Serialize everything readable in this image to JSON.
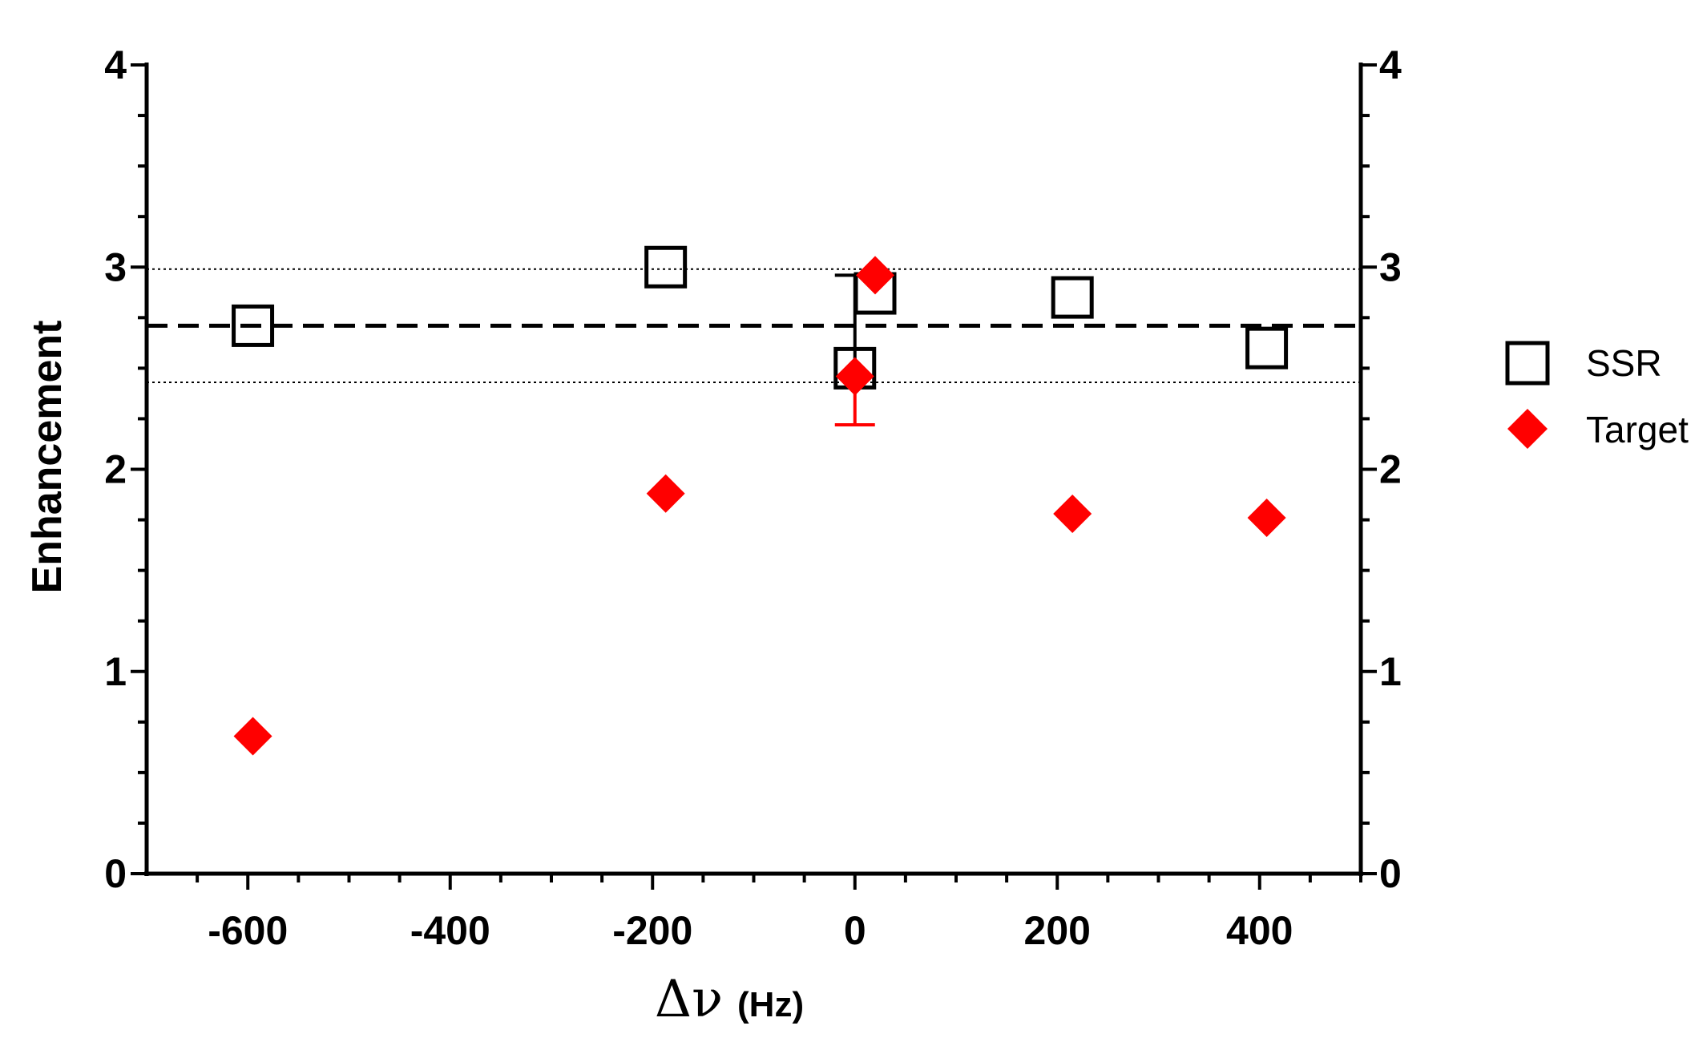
{
  "chart_data": {
    "type": "scatter",
    "title": "",
    "xlabel": {
      "symbol": "Δν",
      "unit": "(Hz)"
    },
    "ylabel": "Enhancement",
    "xlim": [
      -700,
      500
    ],
    "ylim": [
      0,
      4
    ],
    "x_ticks": [
      -600,
      -400,
      -200,
      0,
      200,
      400
    ],
    "x_tick_labels": [
      "-600",
      "-400",
      "-200",
      "0",
      "200",
      "400"
    ],
    "y_ticks": [
      0,
      1,
      2,
      3,
      4
    ],
    "y_tick_labels": [
      "0",
      "1",
      "2",
      "3",
      "4"
    ],
    "y_right_tick_labels": [
      "0",
      "1",
      "2",
      "3",
      "4"
    ],
    "grid": false,
    "legend_position": "right",
    "reference_lines": [
      {
        "name": "mean",
        "y": 2.71,
        "style": "dashed"
      },
      {
        "name": "upper",
        "y": 2.99,
        "style": "dotted"
      },
      {
        "name": "lower",
        "y": 2.43,
        "style": "dotted"
      }
    ],
    "series": [
      {
        "name": "SSR",
        "marker": "open-square",
        "color": "#000000",
        "x": [
          -595,
          -187,
          0,
          20,
          215,
          407
        ],
        "y": [
          2.71,
          3.0,
          2.5,
          2.87,
          2.85,
          2.6
        ],
        "error_bars": [
          {
            "x": 0,
            "y": 2.5,
            "upper": 2.96
          }
        ]
      },
      {
        "name": "Target",
        "marker": "filled-diamond",
        "color": "#ff0000",
        "x": [
          -595,
          -187,
          0,
          20,
          215,
          407
        ],
        "y": [
          0.68,
          1.88,
          2.46,
          2.96,
          1.78,
          1.76
        ],
        "error_bars": [
          {
            "x": 0,
            "y": 2.46,
            "lower": 2.22
          }
        ]
      }
    ]
  }
}
